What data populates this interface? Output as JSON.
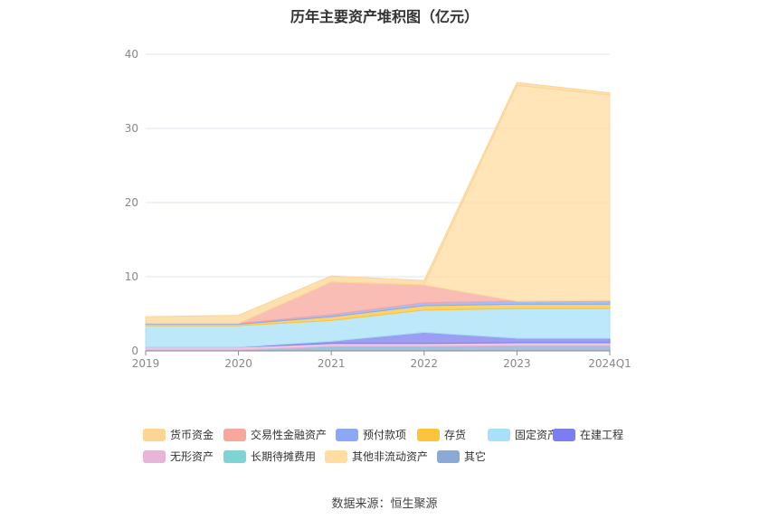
{
  "title": "历年主要资产堆积图（亿元）",
  "source": "数据来源：恒生聚源",
  "colors": {
    "货币资金": "#FCD595",
    "交易性金融资产": "#F8A79C",
    "预付款项": "#8BA8F5",
    "存货": "#FBC43A",
    "固定资产": "#A7E0F8",
    "在建工程": "#7B7EF0",
    "无形资产": "#E6B5D8",
    "长期待摊费用": "#7ED4D2",
    "其他非流动资产": "#FFDCA0",
    "其它": "#8CA9D6"
  },
  "chart_data": {
    "type": "area",
    "stacked": true,
    "title": "历年主要资产堆积图（亿元）",
    "categories": [
      "2019",
      "2020",
      "2021",
      "2022",
      "2023",
      "2024Q1"
    ],
    "ylim": [
      0,
      40
    ],
    "yticks": [
      0,
      10,
      20,
      30,
      40
    ],
    "grid": true,
    "legend_position": "bottom",
    "series": [
      {
        "name": "其它",
        "values": [
          0.1,
          0.1,
          0.5,
          0.5,
          0.6,
          0.6
        ]
      },
      {
        "name": "长期待摊费用",
        "values": [
          0.0,
          0.0,
          0.1,
          0.1,
          0.1,
          0.1
        ]
      },
      {
        "name": "无形资产",
        "values": [
          0.4,
          0.4,
          0.4,
          0.4,
          0.4,
          0.4
        ]
      },
      {
        "name": "在建工程",
        "values": [
          0.0,
          0.0,
          0.3,
          1.5,
          0.6,
          0.6
        ]
      },
      {
        "name": "固定资产",
        "values": [
          2.9,
          2.9,
          2.8,
          3.0,
          4.0,
          4.0
        ]
      },
      {
        "name": "存货",
        "values": [
          0.2,
          0.2,
          0.5,
          0.6,
          0.6,
          0.6
        ]
      },
      {
        "name": "预付款项",
        "values": [
          0.1,
          0.1,
          0.3,
          0.4,
          0.4,
          0.5
        ]
      },
      {
        "name": "交易性金融资产",
        "values": [
          0.0,
          0.0,
          4.4,
          2.4,
          0.0,
          0.0
        ]
      },
      {
        "name": "其他非流动资产",
        "values": [
          0.0,
          0.0,
          0.0,
          0.0,
          29.1,
          27.7
        ]
      },
      {
        "name": "货币资金",
        "values": [
          0.9,
          1.1,
          0.8,
          0.6,
          0.4,
          0.3
        ]
      }
    ],
    "legend_order": [
      "货币资金",
      "交易性金融资产",
      "预付款项",
      "存货",
      "固定资产",
      "在建工程",
      "无形资产",
      "长期待摊费用",
      "其他非流动资产",
      "其它"
    ]
  }
}
